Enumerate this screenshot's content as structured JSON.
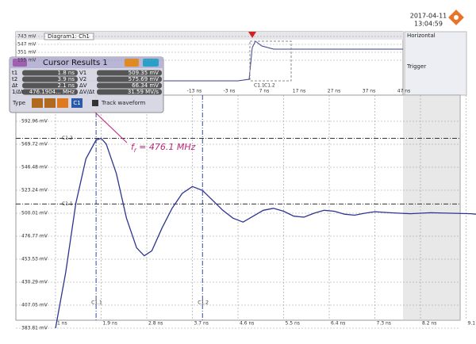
{
  "timestamp": {
    "date": "2017-04-11",
    "time": "13:04:59"
  },
  "overview": {
    "title": "Diagram1: Ch1",
    "y_labels": [
      "743 mV",
      "547 mV",
      "351 mV",
      "155 mV"
    ],
    "x_labels": [
      "-13 ns",
      "-3 ns",
      "7 ns",
      "17 ns",
      "27 ns",
      "37 ns",
      "47 ns"
    ],
    "cursor_labels": [
      "C1.1",
      "C1.2"
    ]
  },
  "cursor_panel": {
    "title": "Cursor Results 1",
    "rows": [
      [
        "t1",
        "1.8 ns",
        "V1",
        "509.35 mV"
      ],
      [
        "t2",
        "3.9 ns",
        "V2",
        "575.69 mV"
      ],
      [
        "Δt",
        "2.1 ns",
        "ΔV",
        "66.34 mV"
      ],
      [
        "1/Δt",
        "476.1904... MHz",
        "ΔV/Δt",
        "31.59 MV/s"
      ]
    ],
    "type_label": "Type",
    "cursor_button": "C1",
    "track": "Track waveform"
  },
  "side_panel": {
    "horizontal": "Horizontal",
    "trigger": "Trigger"
  },
  "annotation": {
    "symbol": "f",
    "subscript": "r",
    "text": "= 476.1 MHz"
  },
  "plot": {
    "yticks": [
      {
        "value": 592.96,
        "label": "592.96 mV"
      },
      {
        "value": 569.72,
        "label": "569.72 mV"
      },
      {
        "value": 546.48,
        "label": "546.48 mV"
      },
      {
        "value": 523.24,
        "label": "523.24 mV"
      },
      {
        "value": 500.01,
        "label": "500.01 mV"
      },
      {
        "value": 476.77,
        "label": "476.77 mV"
      },
      {
        "value": 453.53,
        "label": "453.53 mV"
      },
      {
        "value": 430.29,
        "label": "430.29 mV"
      },
      {
        "value": 407.05,
        "label": "407.05 mV"
      },
      {
        "value": 383.81,
        "label": "383.81 mV"
      }
    ],
    "xticks": [
      {
        "value": 1,
        "label": "1 ns"
      },
      {
        "value": 1.9,
        "label": "1.9 ns"
      },
      {
        "value": 2.8,
        "label": "2.8 ns"
      },
      {
        "value": 3.7,
        "label": "3.7 ns"
      },
      {
        "value": 4.6,
        "label": "4.6 ns"
      },
      {
        "value": 5.5,
        "label": "5.5 ns"
      },
      {
        "value": 6.4,
        "label": "6.4 ns"
      },
      {
        "value": 7.3,
        "label": "7.3 ns"
      },
      {
        "value": 8.2,
        "label": "8.2 ns"
      },
      {
        "value": 9.1,
        "label": "9.1 ns"
      }
    ],
    "cursors": {
      "v1": {
        "label": "C1.1",
        "value": 1.8
      },
      "v2": {
        "label": "C1.2",
        "value": 3.9
      },
      "h1": {
        "label": "C1.1",
        "value": 509.35
      },
      "h2": {
        "label": "C1.2",
        "value": 575.69
      }
    },
    "waveform": {
      "x": [
        1.0,
        1.2,
        1.4,
        1.6,
        1.8,
        1.9,
        2.0,
        2.2,
        2.4,
        2.6,
        2.75,
        2.9,
        3.1,
        3.3,
        3.5,
        3.7,
        3.9,
        4.1,
        4.3,
        4.5,
        4.7,
        4.9,
        5.1,
        5.3,
        5.5,
        5.7,
        5.9,
        6.1,
        6.3,
        6.5,
        6.7,
        6.9,
        7.1,
        7.3,
        7.6,
        8.0,
        8.4,
        8.8,
        9.2,
        9.5
      ],
      "y": [
        383.8,
        440,
        510,
        555,
        574,
        575.7,
        570,
        540,
        495,
        465,
        457,
        462,
        485,
        505,
        520,
        527,
        523,
        513,
        503,
        495,
        491,
        497,
        503,
        505,
        502,
        497,
        496,
        500,
        503,
        502,
        499,
        498,
        500,
        501.5,
        500.5,
        499.5,
        500.5,
        500,
        499.5,
        498
      ]
    }
  }
}
